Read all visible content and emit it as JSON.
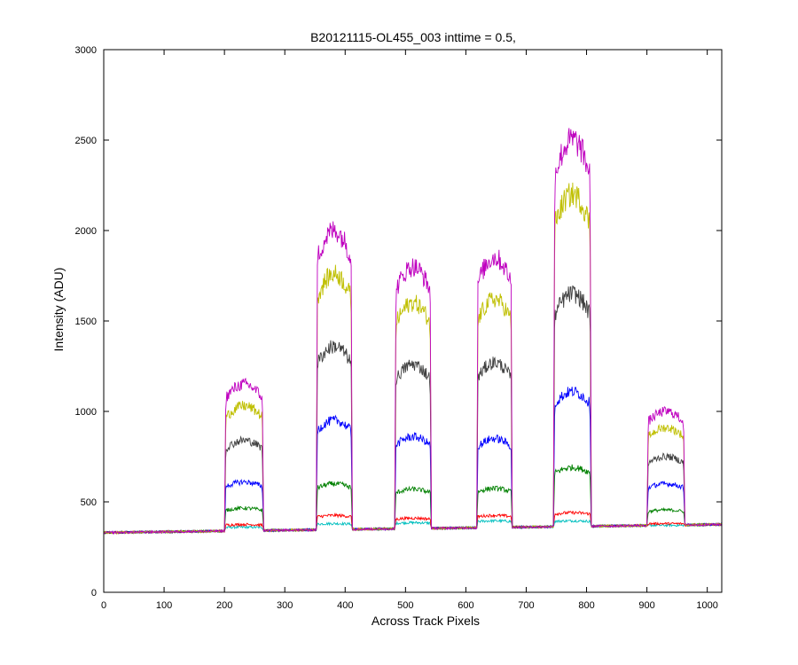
{
  "chart_data": {
    "type": "line",
    "title": "B20121115-OL455_003 inttime = 0.5,",
    "xlabel": "Across Track Pixels",
    "ylabel": "Intensity (ADU)",
    "xlim": [
      0,
      1024
    ],
    "ylim": [
      0,
      3000
    ],
    "x_ticks": [
      0,
      100,
      200,
      300,
      400,
      500,
      600,
      700,
      800,
      900,
      1000
    ],
    "y_ticks": [
      0,
      500,
      1000,
      1500,
      2000,
      2500,
      3000
    ],
    "grid": false,
    "legend": "none",
    "baseline": {
      "start": 330,
      "end": 375
    },
    "bumps": [
      {
        "x_start": 200,
        "x_end": 265
      },
      {
        "x_start": 352,
        "x_end": 412
      },
      {
        "x_start": 482,
        "x_end": 543
      },
      {
        "x_start": 618,
        "x_end": 677
      },
      {
        "x_start": 745,
        "x_end": 808
      },
      {
        "x_start": 900,
        "x_end": 963
      }
    ],
    "series": [
      {
        "color": "#bf00bf",
        "peaks": [
          1150,
          2000,
          1800,
          1850,
          2500,
          1000
        ]
      },
      {
        "color": "#bfbf00",
        "peaks": [
          1030,
          1760,
          1600,
          1620,
          2200,
          910
        ]
      },
      {
        "color": "#404040",
        "peaks": [
          840,
          1360,
          1260,
          1270,
          1650,
          750
        ]
      },
      {
        "color": "#0000ff",
        "peaks": [
          610,
          950,
          860,
          850,
          1110,
          600
        ]
      },
      {
        "color": "#008000",
        "peaks": [
          465,
          600,
          570,
          575,
          690,
          455
        ]
      },
      {
        "color": "#ff0000",
        "peaks": [
          375,
          425,
          410,
          425,
          440,
          380
        ]
      },
      {
        "color": "#00bfbf",
        "peaks": [
          360,
          380,
          385,
          395,
          395,
          370
        ]
      }
    ]
  }
}
